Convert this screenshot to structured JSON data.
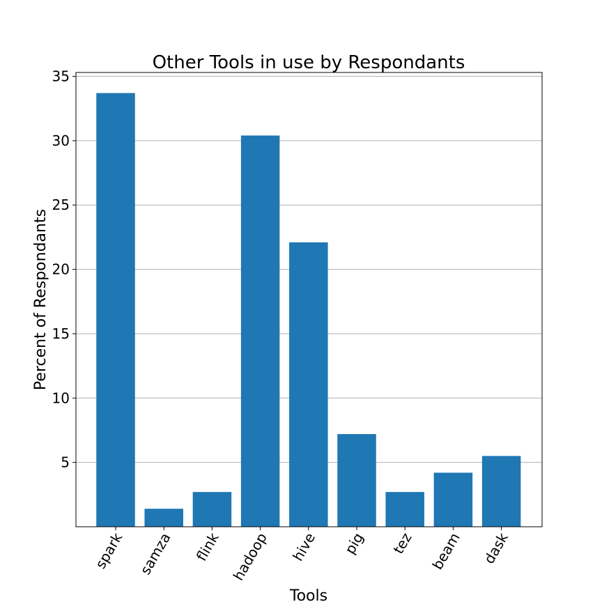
{
  "chart_data": {
    "type": "bar",
    "title": "Other Tools in use by Respondants",
    "xlabel": "Tools",
    "ylabel": "Percent of Respondants",
    "categories": [
      "spark",
      "samza",
      "flink",
      "hadoop",
      "hive",
      "pig",
      "tez",
      "beam",
      "dask"
    ],
    "values": [
      33.7,
      1.4,
      2.7,
      30.4,
      22.1,
      7.2,
      2.7,
      4.2,
      5.5
    ],
    "ylim": [
      0,
      35.3
    ],
    "yticks": [
      5,
      10,
      15,
      20,
      25,
      30,
      35
    ],
    "grid": "horizontal",
    "bar_color": "#1f77b4",
    "grid_color": "#b0b0b0"
  }
}
